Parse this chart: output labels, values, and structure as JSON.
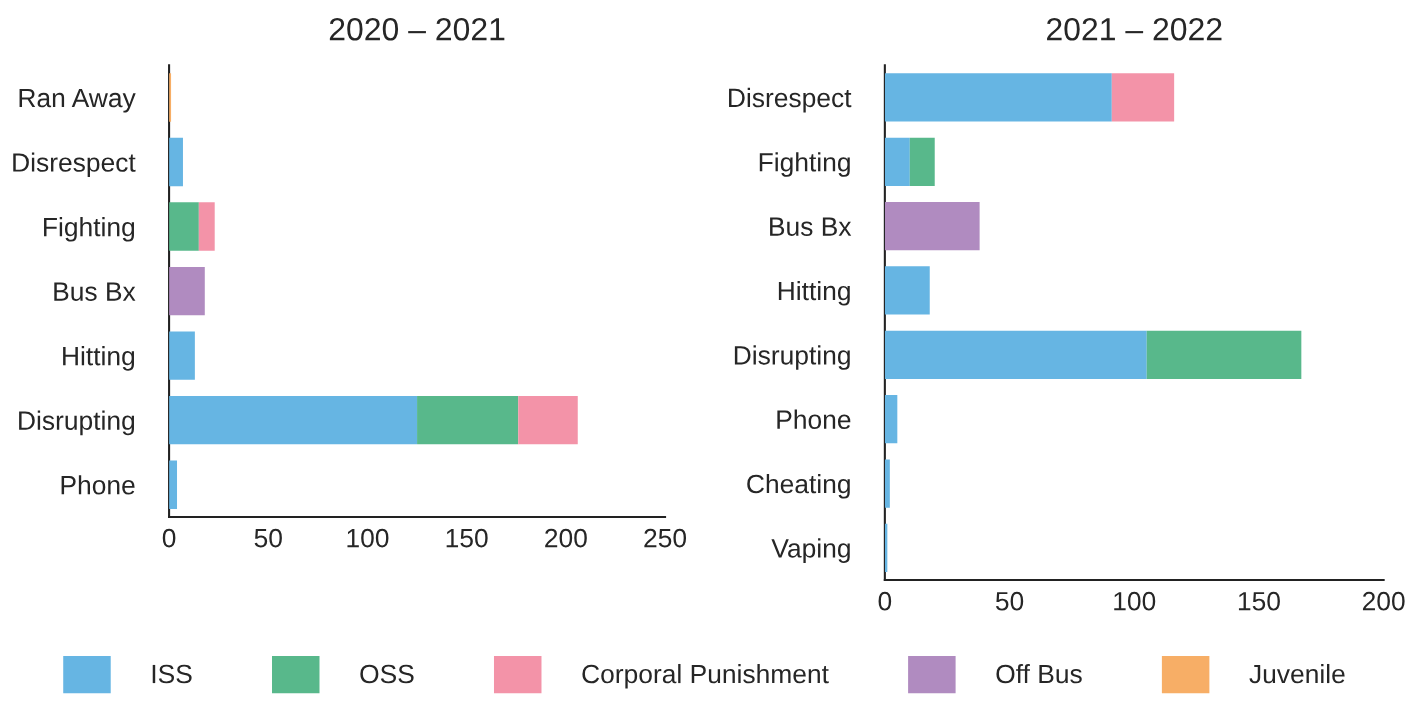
{
  "chart_data": [
    {
      "type": "bar",
      "orientation": "horizontal",
      "stacked": true,
      "title": "2020 – 2021",
      "categories": [
        "Ran Away",
        "Disrespect",
        "Fighting",
        "Bus Bx",
        "Hitting",
        "Disrupting",
        "Phone"
      ],
      "series": [
        {
          "name": "ISS",
          "color": "#66b5e3",
          "values": [
            null,
            7,
            null,
            null,
            13,
            125,
            4
          ]
        },
        {
          "name": "OSS",
          "color": "#58b88b",
          "values": [
            null,
            null,
            15,
            null,
            null,
            51,
            null
          ]
        },
        {
          "name": "Corporal Punishment",
          "color": "#f393a8",
          "values": [
            null,
            null,
            8,
            null,
            null,
            30,
            null
          ]
        },
        {
          "name": "Off Bus",
          "color": "#b08bc0",
          "values": [
            null,
            null,
            null,
            18,
            null,
            null,
            null
          ]
        },
        {
          "name": "Juvenile",
          "color": "#f7ae66",
          "values": [
            1,
            null,
            null,
            null,
            null,
            null,
            null
          ]
        }
      ],
      "xlim": [
        0,
        250
      ],
      "xticks": [
        0,
        50,
        100,
        150,
        200,
        250
      ],
      "grid": false,
      "legend": "bottom"
    },
    {
      "type": "bar",
      "orientation": "horizontal",
      "stacked": true,
      "title": "2021 – 2022",
      "categories": [
        "Disrespect",
        "Fighting",
        "Bus Bx",
        "Hitting",
        "Disrupting",
        "Phone",
        "Cheating",
        "Vaping"
      ],
      "series": [
        {
          "color": "#66b5e3",
          "values": [
            91,
            10,
            null,
            18,
            105,
            5,
            2,
            1
          ]
        },
        {
          "color": "#58b88b",
          "values": [
            null,
            10,
            null,
            null,
            62,
            null,
            null,
            null
          ]
        },
        {
          "color": "#f393a8",
          "values": [
            25,
            null,
            null,
            null,
            null,
            null,
            null,
            null
          ]
        },
        {
          "color": "#b08bc0",
          "values": [
            null,
            null,
            38,
            null,
            null,
            null,
            null,
            null
          ]
        }
      ],
      "xlim": [
        0,
        200
      ],
      "xticks": [
        0,
        50,
        100,
        150,
        200
      ],
      "grid": false,
      "legend": false
    }
  ]
}
